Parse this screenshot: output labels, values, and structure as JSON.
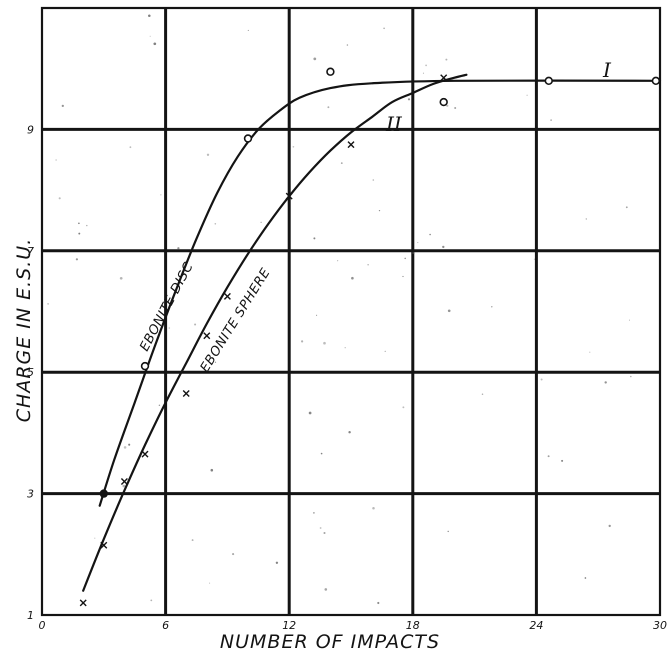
{
  "chart_data": {
    "type": "scatter",
    "title": "",
    "xlabel": "NUMBER OF IMPACTS",
    "ylabel": "CHARGE IN E.S.U.",
    "xlim": [
      0,
      30
    ],
    "ylim": [
      1,
      11
    ],
    "x_ticks": [
      0,
      6,
      12,
      18,
      24,
      30
    ],
    "y_ticks": [
      1,
      3,
      5,
      7,
      9
    ],
    "grid": true,
    "series": [
      {
        "name": "I",
        "annotation": "EBONITE DISC",
        "marker": "circle",
        "points": [
          [
            3,
            3.0
          ],
          [
            5,
            5.1
          ],
          [
            10,
            8.85
          ],
          [
            14,
            9.95
          ],
          [
            19.5,
            9.45
          ],
          [
            24.6,
            9.8
          ],
          [
            29.8,
            9.8
          ]
        ],
        "curve": [
          [
            2.8,
            2.8
          ],
          [
            3.5,
            3.55
          ],
          [
            4.5,
            4.5
          ],
          [
            5.5,
            5.45
          ],
          [
            6.5,
            6.35
          ],
          [
            7.5,
            7.2
          ],
          [
            8.5,
            7.95
          ],
          [
            9.5,
            8.55
          ],
          [
            10.5,
            9.0
          ],
          [
            11.5,
            9.3
          ],
          [
            12.5,
            9.52
          ],
          [
            14,
            9.68
          ],
          [
            16,
            9.76
          ],
          [
            20,
            9.8
          ],
          [
            30,
            9.8
          ]
        ]
      },
      {
        "name": "II",
        "annotation": "EBONITE SPHERE",
        "marker": "cross",
        "points": [
          [
            2,
            1.2
          ],
          [
            3,
            2.15
          ],
          [
            4,
            3.2
          ],
          [
            5,
            3.65
          ],
          [
            7,
            4.65
          ],
          [
            8,
            5.6
          ],
          [
            9,
            6.25
          ],
          [
            12,
            7.9
          ],
          [
            15,
            8.75
          ],
          [
            19.5,
            9.85
          ]
        ],
        "curve": [
          [
            2,
            1.4
          ],
          [
            3,
            2.25
          ],
          [
            4,
            3.05
          ],
          [
            5,
            3.8
          ],
          [
            6,
            4.5
          ],
          [
            7,
            5.15
          ],
          [
            8,
            5.8
          ],
          [
            9,
            6.4
          ],
          [
            10,
            6.95
          ],
          [
            11,
            7.45
          ],
          [
            12,
            7.9
          ],
          [
            13,
            8.3
          ],
          [
            14,
            8.65
          ],
          [
            15,
            8.95
          ],
          [
            16,
            9.2
          ],
          [
            17,
            9.45
          ],
          [
            18,
            9.6
          ],
          [
            19,
            9.75
          ],
          [
            20,
            9.85
          ],
          [
            20.6,
            9.9
          ]
        ]
      }
    ]
  }
}
